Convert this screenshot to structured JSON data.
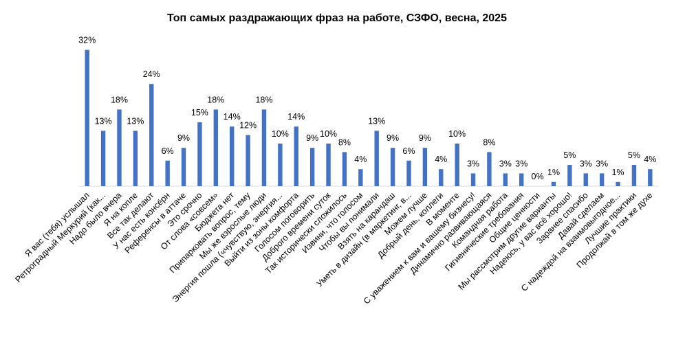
{
  "chart_data": {
    "type": "bar",
    "title": "Топ самых раздражающих фраз на работе, СЗФО, весна, 2025",
    "xlabel": "",
    "ylabel": "",
    "ylim": [
      0,
      35
    ],
    "grid": false,
    "legend": "none",
    "value_suffix": "%",
    "bar_color": "#4472c4",
    "categories": [
      "Я вас (тебя) услышал",
      "Ретроградный Меркурий (как...",
      "Надо было вчера",
      "Я на копле",
      "Все так делают",
      "У нас есть консёрн",
      "Референсы в аттаче",
      "Это срочно",
      "От слова «совсем»",
      "Бюджета нет",
      "Припарковать вопрос, тему",
      "Мы же взрослые люди",
      "Энергия пошла («чувствую, энергия...",
      "Выйти из зоны комфорта",
      "Голосом поговорить",
      "Доброго времени суток",
      "Так исторически сложилось",
      "Извини, что голосом",
      "Чтобы вы понимали",
      "Взять на карандаш",
      "Уметь в дизайн (в маркетинг, в...",
      "Можем лучше",
      "Добрый день, коллеги",
      "В моменте",
      "С уважением к вам и вашему бизнесу!",
      "Динамично развивающаяся",
      "Командная работа",
      "Гигиенические требования",
      "Общие ценности",
      "Мы рассмотрим другие варианты",
      "Надеюсь, у вас всё хорошо!",
      "Заранее спасибо",
      "Давай сделаем",
      "С надеждой на взаимовыгодное...",
      "Лучшие практики",
      "Продолжай в том же духе"
    ],
    "values": [
      32,
      13,
      18,
      13,
      24,
      6,
      9,
      15,
      18,
      14,
      12,
      18,
      10,
      14,
      9,
      10,
      8,
      4,
      13,
      9,
      6,
      9,
      4,
      10,
      3,
      8,
      3,
      3,
      0,
      1,
      5,
      3,
      3,
      1,
      5,
      4
    ]
  }
}
